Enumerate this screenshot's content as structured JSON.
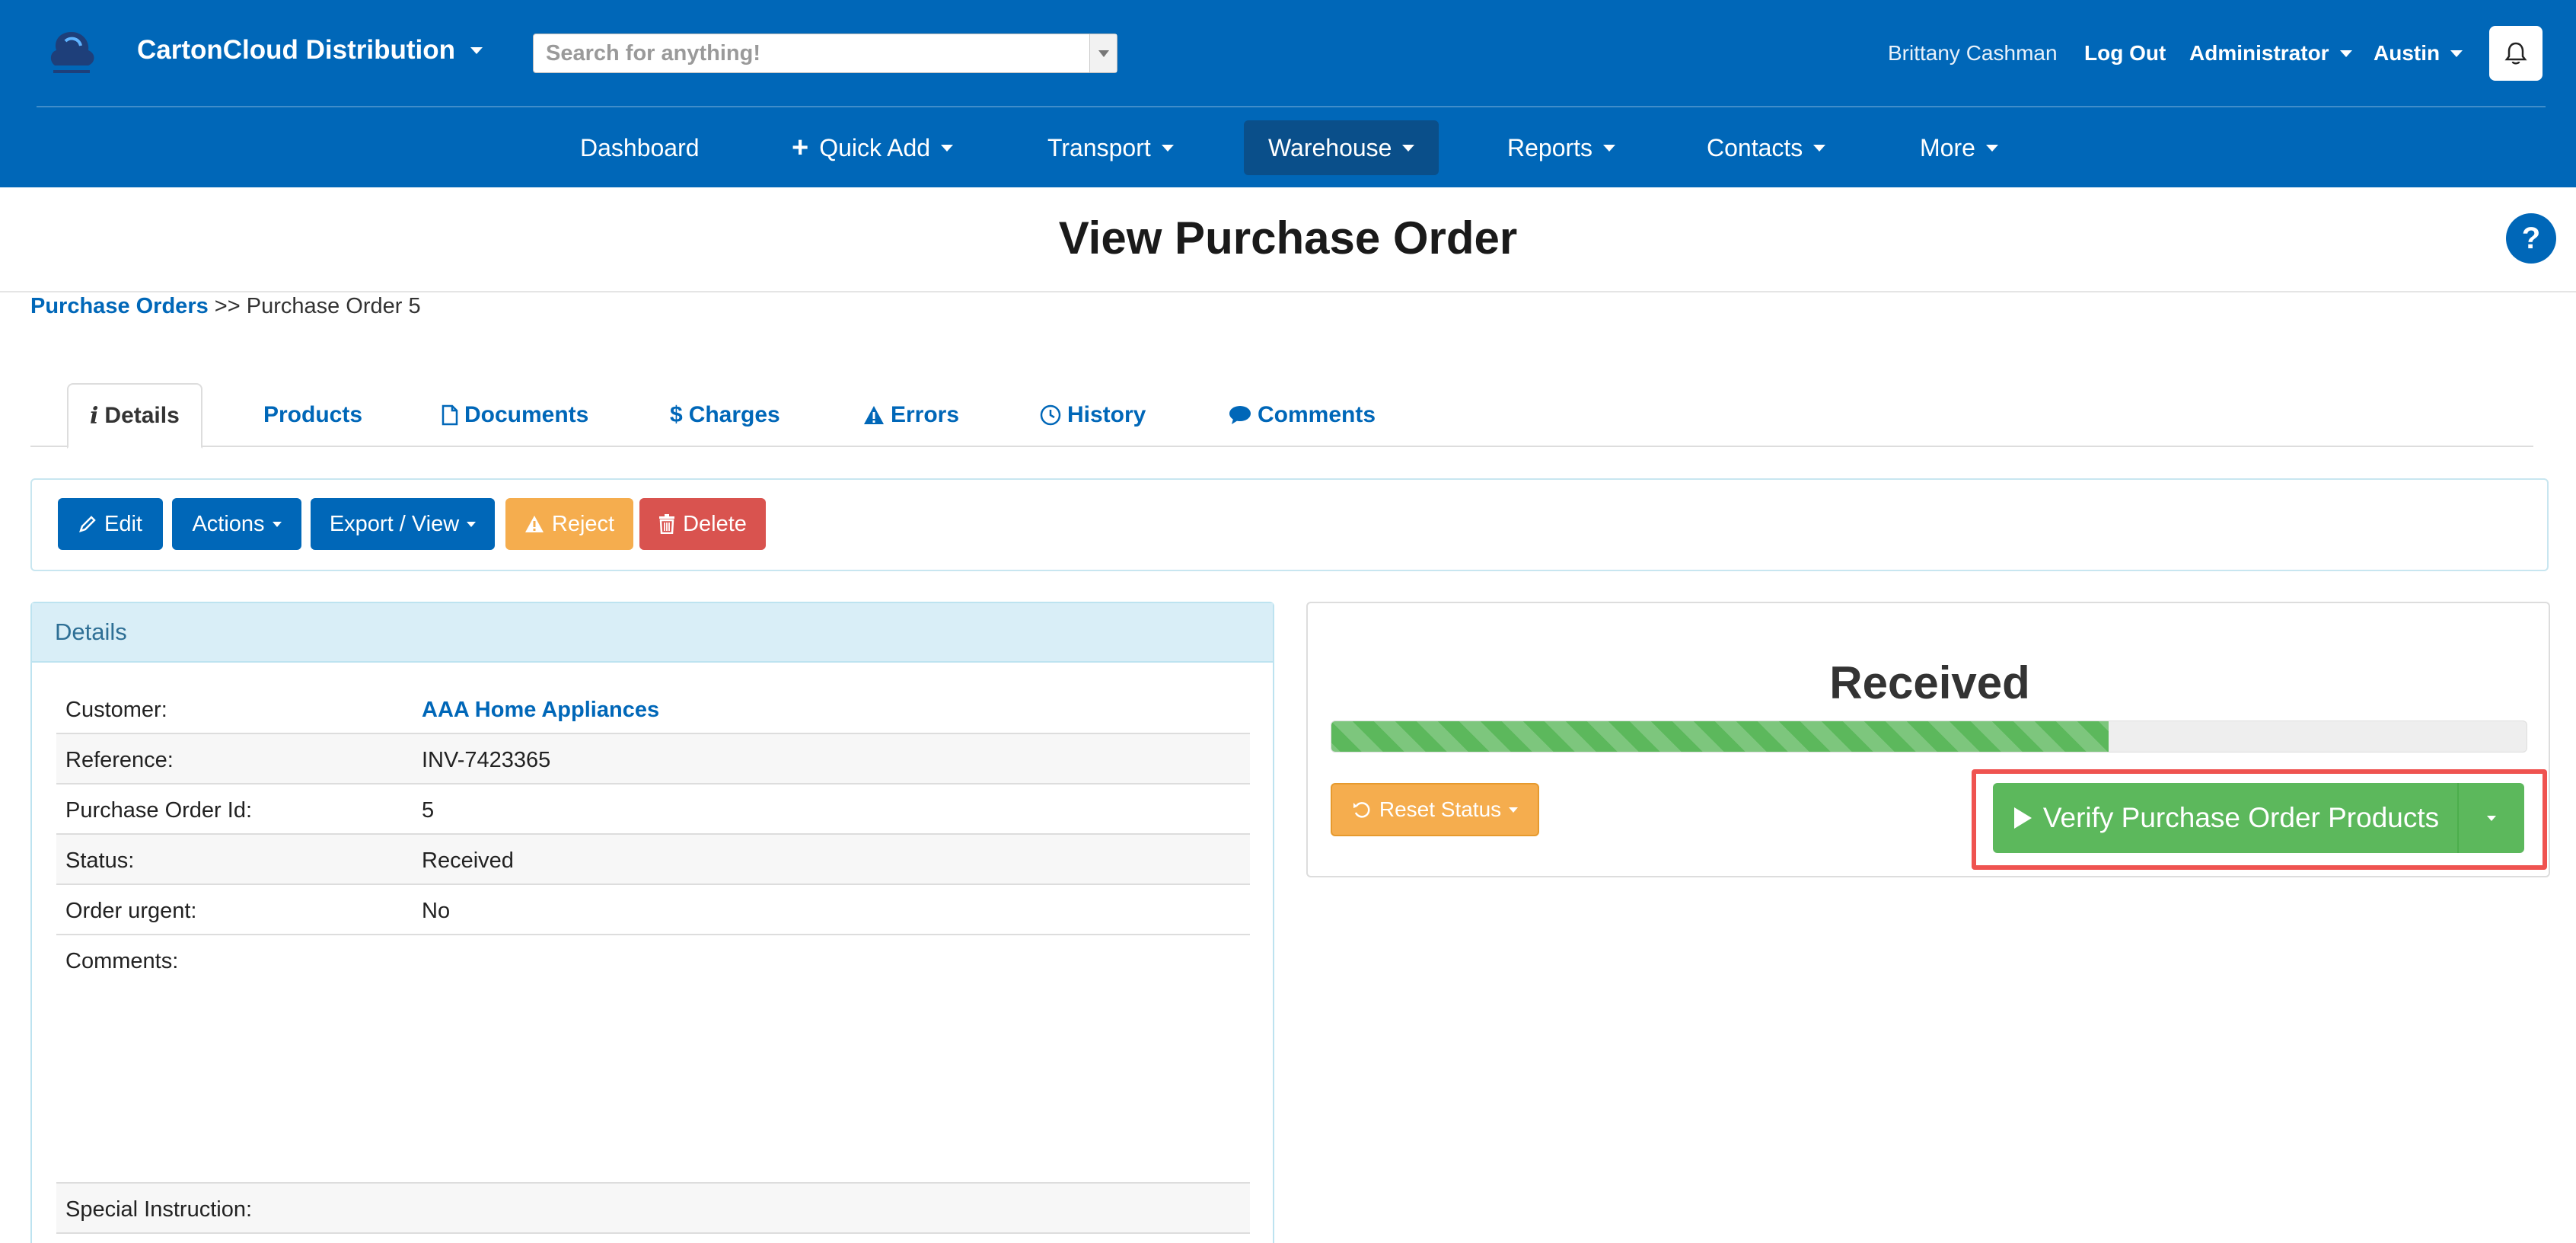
{
  "header": {
    "brand": "CartonCloud Distribution",
    "search_placeholder": "Search for anything!",
    "user_name": "Brittany Cashman",
    "logout": "Log Out",
    "role": "Administrator",
    "location": "Austin"
  },
  "nav": {
    "items": [
      {
        "label": "Dashboard"
      },
      {
        "label": "Quick Add"
      },
      {
        "label": "Transport"
      },
      {
        "label": "Warehouse"
      },
      {
        "label": "Reports"
      },
      {
        "label": "Contacts"
      },
      {
        "label": "More"
      }
    ]
  },
  "page": {
    "title": "View Purchase Order",
    "help": "?"
  },
  "breadcrumb": {
    "link": "Purchase Orders",
    "separator": ">>",
    "current": "Purchase Order 5"
  },
  "tabs": [
    {
      "label": "Details"
    },
    {
      "label": "Products"
    },
    {
      "label": "Documents"
    },
    {
      "label": "Charges"
    },
    {
      "label": "Errors"
    },
    {
      "label": "History"
    },
    {
      "label": "Comments"
    }
  ],
  "actions": {
    "edit": "Edit",
    "actions": "Actions",
    "export": "Export / View",
    "reject": "Reject",
    "delete": "Delete"
  },
  "details": {
    "heading": "Details",
    "rows": [
      {
        "key": "Customer:",
        "value": "AAA Home Appliances"
      },
      {
        "key": "Reference:",
        "value": "INV-7423365"
      },
      {
        "key": "Purchase Order Id:",
        "value": "5"
      },
      {
        "key": "Status:",
        "value": "Received"
      },
      {
        "key": "Order urgent:",
        "value": "No"
      },
      {
        "key": "Comments:",
        "value": ""
      },
      {
        "key": "Special Instruction:",
        "value": ""
      }
    ]
  },
  "status": {
    "label": "Received",
    "progress_fraction": 0.65,
    "reset": "Reset Status",
    "verify": "Verify Purchase Order Products"
  },
  "colors": {
    "brand": "#0067b8",
    "success": "#5cb85c",
    "warning": "#f5ad4e",
    "danger": "#d9534f",
    "highlight": "#ef5350"
  }
}
